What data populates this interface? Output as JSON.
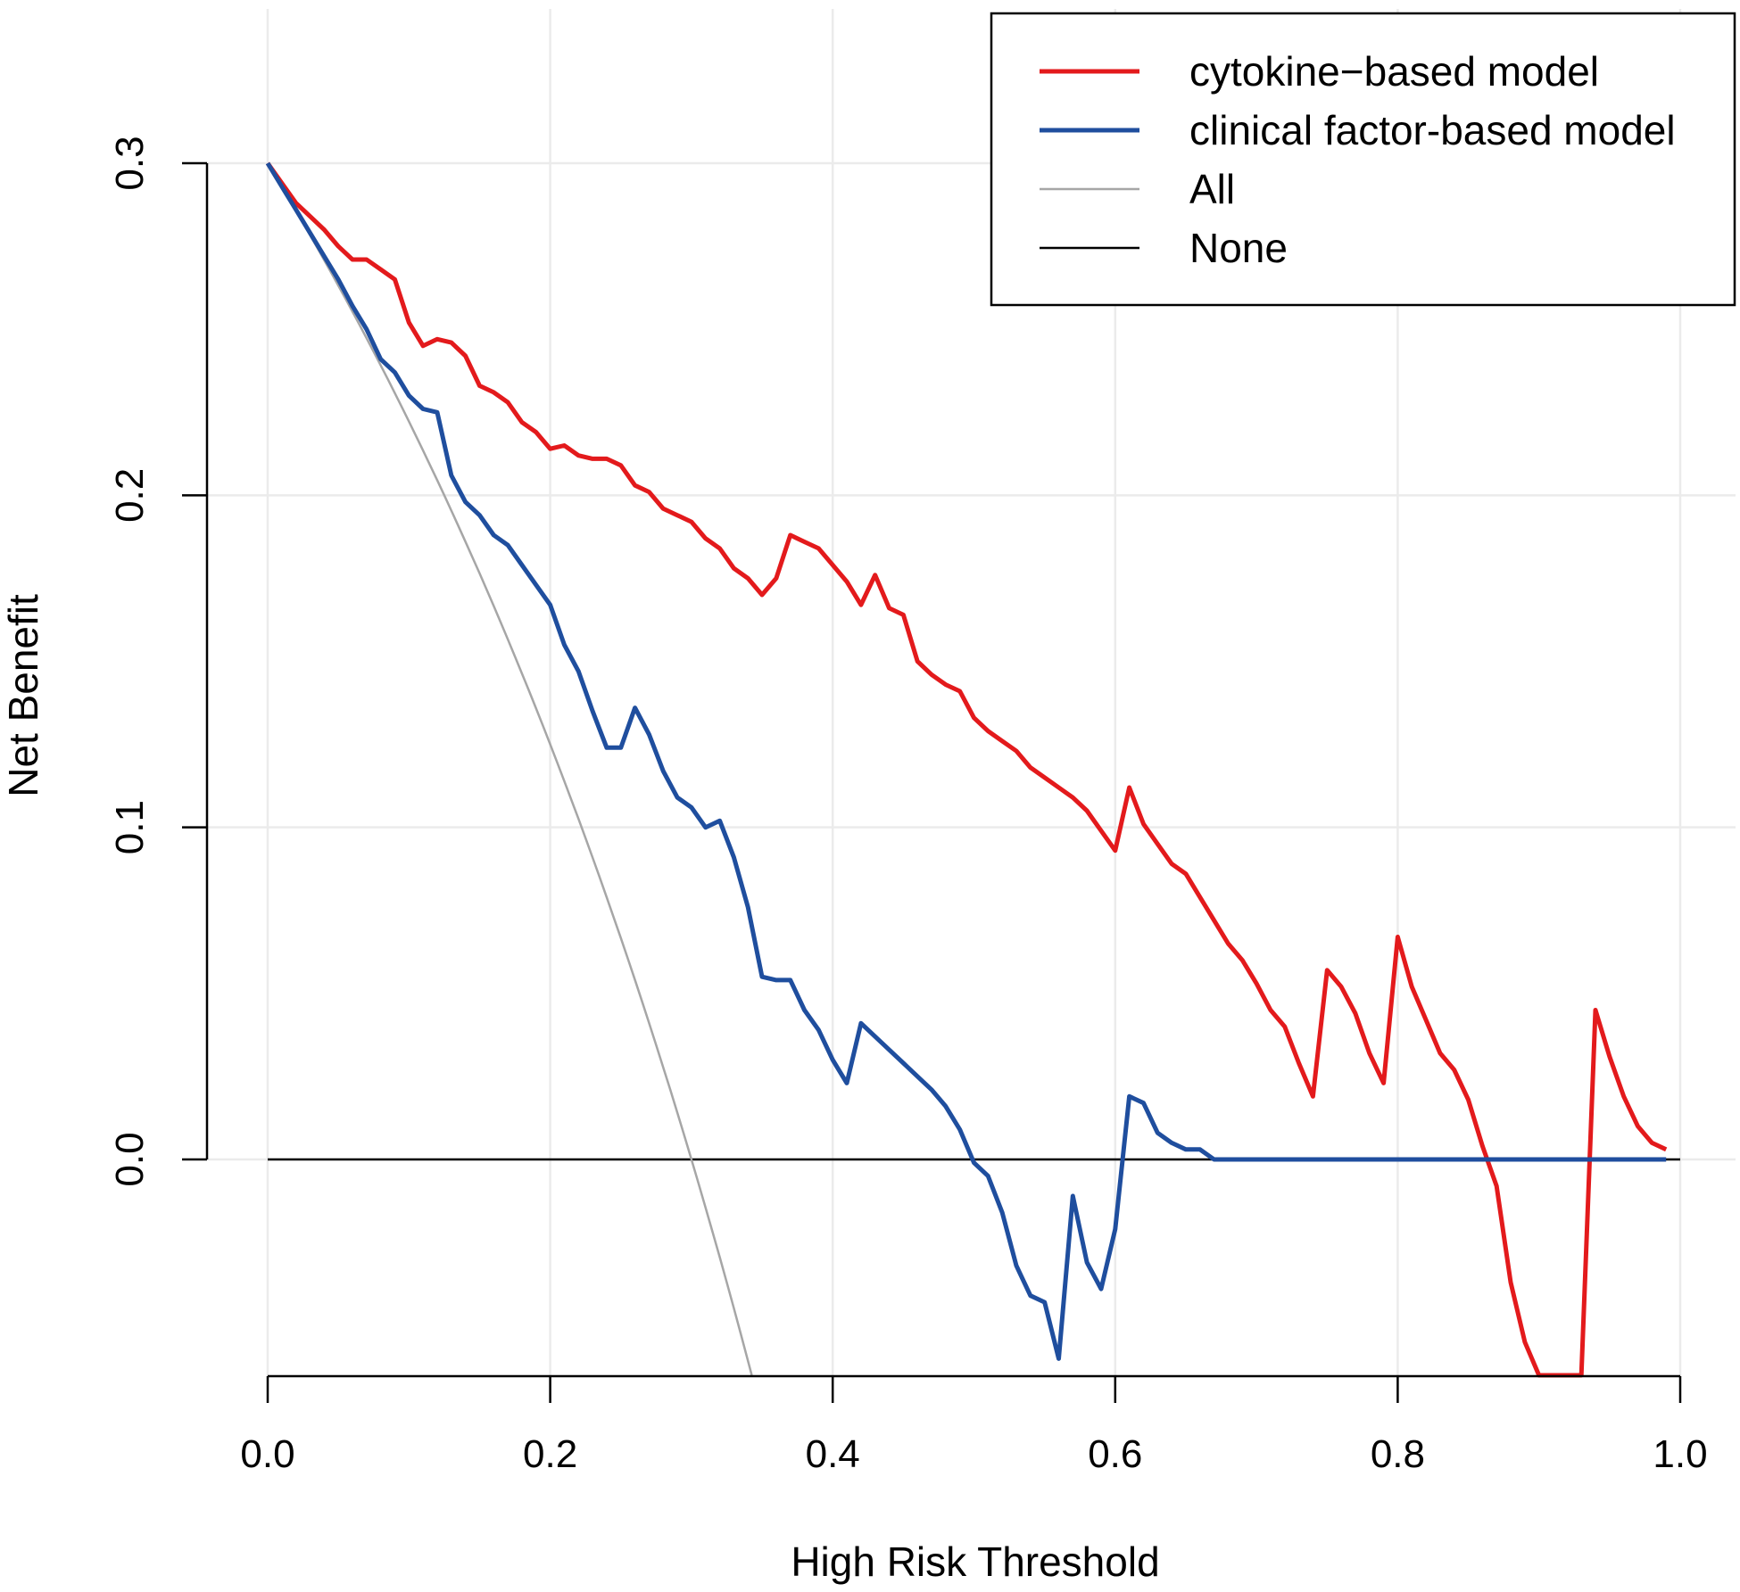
{
  "chart_data": {
    "type": "line",
    "title": "",
    "xlabel": "High Risk Threshold",
    "ylabel": "Net Benefit",
    "xlim": [
      0.0,
      1.0
    ],
    "ylim": [
      -0.065,
      0.3
    ],
    "x_ticks": [
      0.0,
      0.2,
      0.4,
      0.6,
      0.8,
      1.0
    ],
    "x_tick_labels": [
      "0.0",
      "0.2",
      "0.4",
      "0.6",
      "0.8",
      "1.0"
    ],
    "y_ticks": [
      0.0,
      0.1,
      0.2,
      0.3
    ],
    "y_tick_labels": [
      "0.0",
      "0.1",
      "0.2",
      "0.3"
    ],
    "grid": true,
    "legend_position": "top-right",
    "series": [
      {
        "name": "cytokine−based model",
        "color": "#e31a1c",
        "x": [
          0,
          0.02,
          0.03,
          0.04,
          0.05,
          0.06,
          0.07,
          0.08,
          0.09,
          0.1,
          0.11,
          0.12,
          0.13,
          0.14,
          0.15,
          0.16,
          0.17,
          0.18,
          0.19,
          0.2,
          0.21,
          0.22,
          0.23,
          0.24,
          0.25,
          0.26,
          0.27,
          0.28,
          0.29,
          0.3,
          0.31,
          0.32,
          0.33,
          0.34,
          0.35,
          0.36,
          0.37,
          0.38,
          0.39,
          0.4,
          0.41,
          0.42,
          0.43,
          0.44,
          0.45,
          0.46,
          0.47,
          0.48,
          0.49,
          0.5,
          0.51,
          0.52,
          0.53,
          0.54,
          0.55,
          0.56,
          0.57,
          0.58,
          0.59,
          0.6,
          0.61,
          0.62,
          0.63,
          0.64,
          0.65,
          0.66,
          0.67,
          0.68,
          0.69,
          0.7,
          0.71,
          0.72,
          0.73,
          0.74,
          0.75,
          0.76,
          0.77,
          0.78,
          0.79,
          0.8,
          0.81,
          0.82,
          0.83,
          0.84,
          0.85,
          0.86,
          0.87,
          0.88,
          0.89,
          0.9,
          0.91,
          0.92,
          0.93,
          0.94,
          0.95,
          0.96,
          0.97,
          0.98,
          0.99
        ],
        "y": [
          0.3,
          0.288,
          0.284,
          0.28,
          0.275,
          0.271,
          0.271,
          0.268,
          0.265,
          0.252,
          0.245,
          0.247,
          0.246,
          0.242,
          0.233,
          0.231,
          0.228,
          0.222,
          0.219,
          0.214,
          0.215,
          0.212,
          0.211,
          0.211,
          0.209,
          0.203,
          0.201,
          0.196,
          0.194,
          0.192,
          0.187,
          0.184,
          0.178,
          0.175,
          0.17,
          0.175,
          0.188,
          0.186,
          0.184,
          0.179,
          0.174,
          0.167,
          0.176,
          0.166,
          0.164,
          0.15,
          0.146,
          0.143,
          0.141,
          0.133,
          0.129,
          0.126,
          0.123,
          0.118,
          0.115,
          0.112,
          0.109,
          0.105,
          0.099,
          0.093,
          0.112,
          0.101,
          0.095,
          0.089,
          0.086,
          0.079,
          0.072,
          0.065,
          0.06,
          0.053,
          0.045,
          0.04,
          0.029,
          0.019,
          0.057,
          0.052,
          0.044,
          0.032,
          0.023,
          0.067,
          0.052,
          0.042,
          0.032,
          0.027,
          0.018,
          0.004,
          -0.008,
          -0.037,
          -0.055,
          -0.065,
          -0.065,
          -0.065,
          -0.065,
          0.045,
          0.031,
          0.019,
          0.01,
          0.005,
          0.003
        ]
      },
      {
        "name": "clinical factor-based model",
        "color": "#1f4e9e",
        "x": [
          0,
          0.01,
          0.02,
          0.03,
          0.04,
          0.05,
          0.06,
          0.07,
          0.08,
          0.09,
          0.1,
          0.11,
          0.12,
          0.13,
          0.14,
          0.15,
          0.16,
          0.17,
          0.18,
          0.19,
          0.2,
          0.21,
          0.22,
          0.23,
          0.24,
          0.25,
          0.26,
          0.27,
          0.28,
          0.29,
          0.3,
          0.31,
          0.32,
          0.33,
          0.34,
          0.35,
          0.36,
          0.37,
          0.38,
          0.39,
          0.4,
          0.41,
          0.42,
          0.43,
          0.44,
          0.45,
          0.46,
          0.47,
          0.48,
          0.49,
          0.5,
          0.51,
          0.52,
          0.53,
          0.54,
          0.55,
          0.56,
          0.57,
          0.58,
          0.59,
          0.6,
          0.61,
          0.62,
          0.63,
          0.64,
          0.65,
          0.66,
          0.67,
          0.68,
          0.69,
          0.99
        ],
        "y": [
          0.3,
          0.293,
          0.286,
          0.279,
          0.272,
          0.265,
          0.257,
          0.25,
          0.241,
          0.237,
          0.23,
          0.226,
          0.225,
          0.206,
          0.198,
          0.194,
          0.188,
          0.185,
          0.179,
          0.173,
          0.167,
          0.155,
          0.147,
          0.135,
          0.124,
          0.124,
          0.136,
          0.128,
          0.117,
          0.109,
          0.106,
          0.1,
          0.102,
          0.091,
          0.076,
          0.055,
          0.054,
          0.054,
          0.045,
          0.039,
          0.03,
          0.023,
          0.041,
          0.037,
          0.033,
          0.029,
          0.025,
          0.021,
          0.016,
          0.009,
          -0.001,
          -0.005,
          -0.016,
          -0.032,
          -0.041,
          -0.043,
          -0.06,
          -0.011,
          -0.031,
          -0.039,
          -0.021,
          0.019,
          0.017,
          0.008,
          0.005,
          0.003,
          0.003,
          0.0,
          0.0,
          0.0,
          0.0
        ]
      },
      {
        "name": "All",
        "color": "#a6a6a6",
        "prevalence": 0.3
      },
      {
        "name": "None",
        "color": "#000000",
        "y": 0.0
      }
    ]
  }
}
